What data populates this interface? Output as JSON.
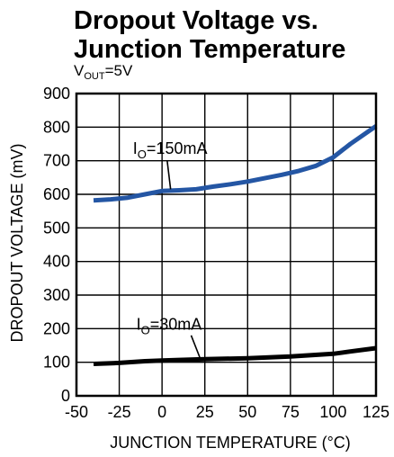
{
  "chart_data": {
    "type": "line",
    "title_lines": [
      "Dropout Voltage vs.",
      "Junction Temperature"
    ],
    "subtitle": {
      "main": "V",
      "sub": "OUT",
      "rest": "=5V"
    },
    "xlabel": "JUNCTION TEMPERATURE (°C)",
    "ylabel": "DROPOUT VOLTAGE (mV)",
    "xlim": [
      -50,
      125
    ],
    "ylim": [
      0,
      900
    ],
    "x_ticks": [
      -50,
      -25,
      0,
      25,
      50,
      75,
      100,
      125
    ],
    "x_tick_labels": [
      "-50",
      "-25",
      "0",
      "25",
      "50",
      "75",
      "100",
      "125"
    ],
    "y_ticks": [
      0,
      100,
      200,
      300,
      400,
      500,
      600,
      700,
      800,
      900
    ],
    "y_tick_labels": [
      "0",
      "100",
      "200",
      "300",
      "400",
      "500",
      "600",
      "700",
      "800",
      "900"
    ],
    "grid": true,
    "series": [
      {
        "label_main": "I",
        "label_sub": "O",
        "label_rest": "=150mA",
        "color": "#2456a4",
        "x": [
          -40,
          -30,
          -20,
          -10,
          0,
          10,
          20,
          30,
          40,
          50,
          60,
          70,
          80,
          90,
          100,
          110,
          125
        ],
        "y": [
          582,
          585,
          590,
          600,
          610,
          612,
          615,
          623,
          630,
          638,
          648,
          658,
          670,
          685,
          710,
          750,
          803
        ]
      },
      {
        "label_main": "I",
        "label_sub": "O",
        "label_rest": "=30mA",
        "color": "#000000",
        "x": [
          -40,
          -25,
          -10,
          0,
          10,
          25,
          50,
          75,
          100,
          110,
          125
        ],
        "y": [
          95,
          98,
          103,
          105,
          107,
          109,
          112,
          117,
          125,
          132,
          142
        ]
      }
    ],
    "annotations": [
      {
        "series_index": 0,
        "text_x": -17,
        "text_y": 720,
        "line_from": [
          3,
          700
        ],
        "line_to": [
          5,
          615
        ]
      },
      {
        "series_index": 1,
        "text_x": -15,
        "text_y": 197,
        "line_from": [
          17,
          180
        ],
        "line_to": [
          22,
          115
        ]
      }
    ]
  }
}
